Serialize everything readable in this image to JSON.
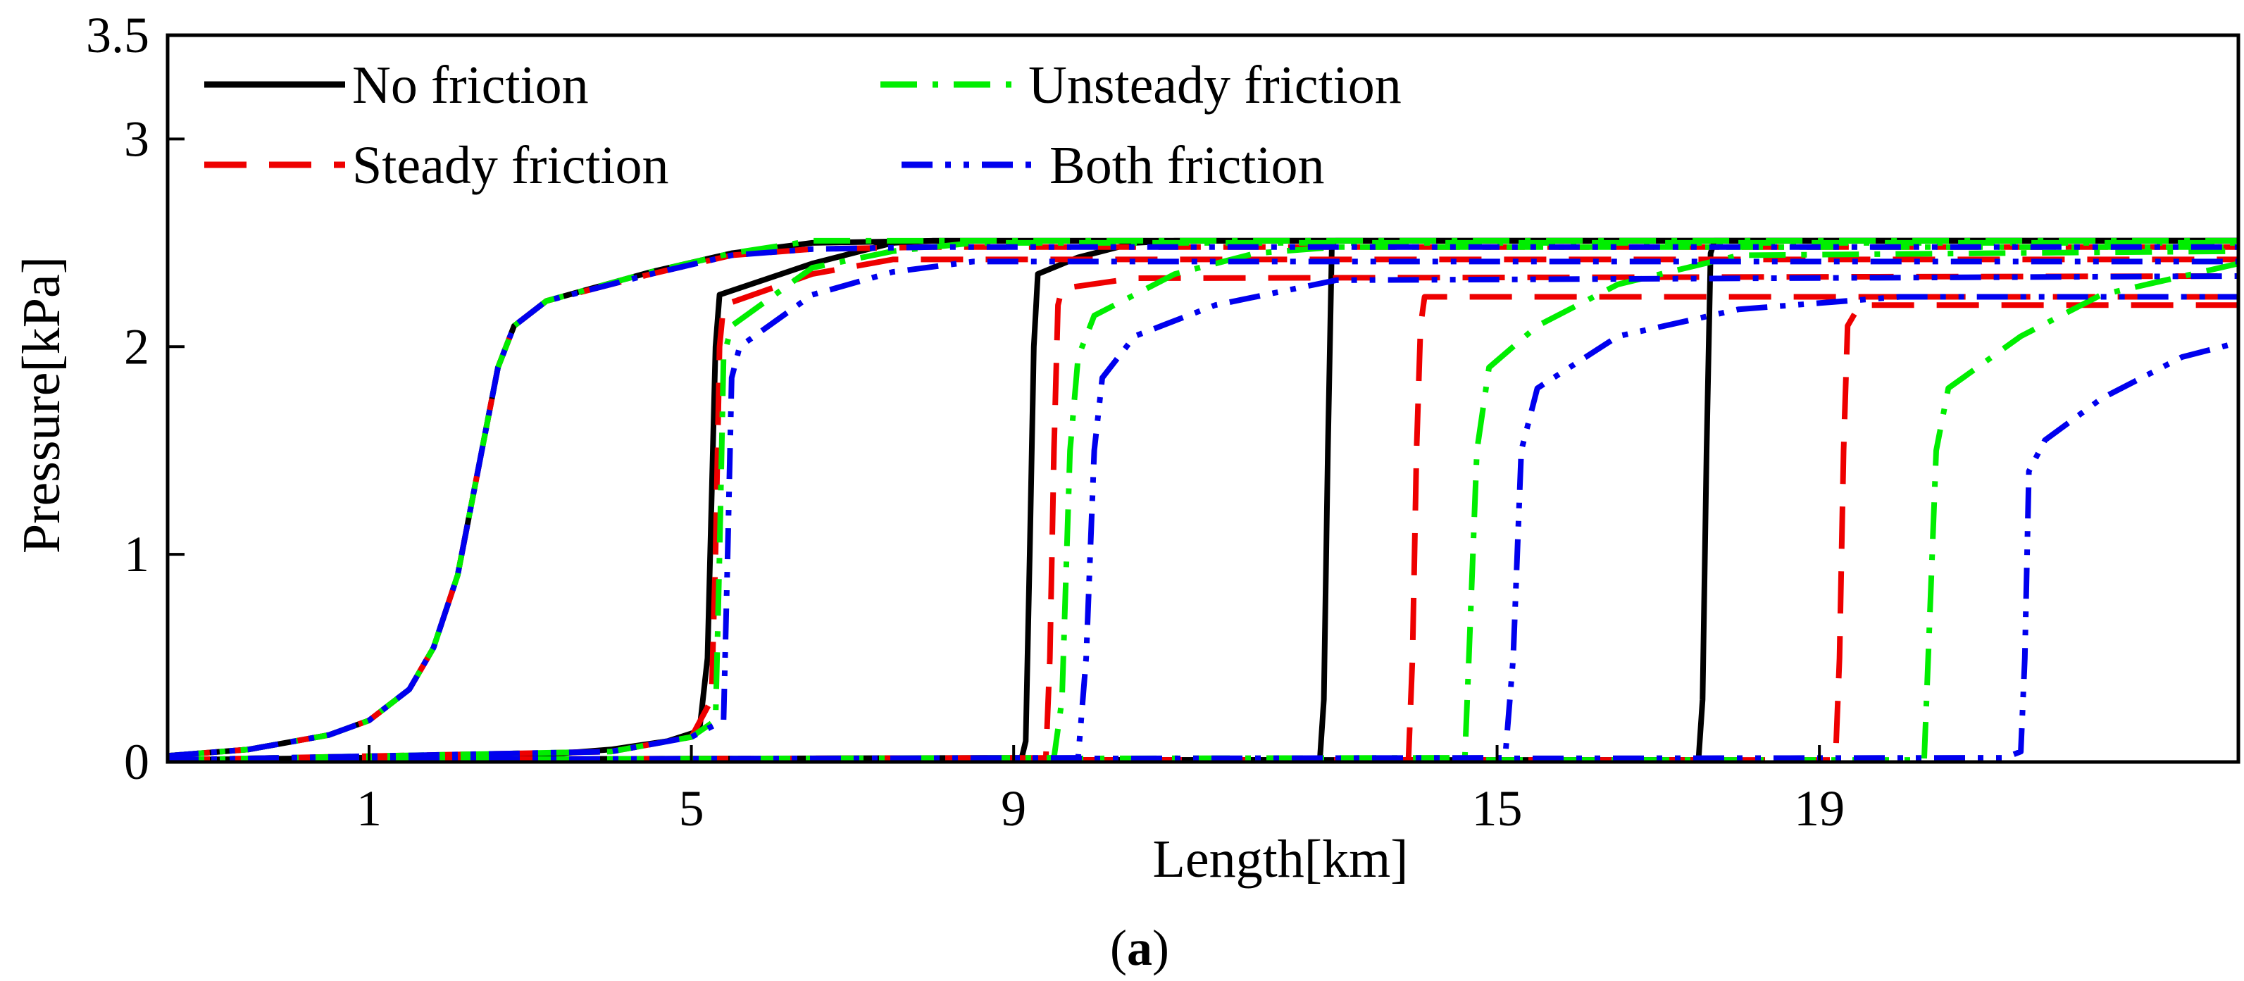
{
  "chart_data": {
    "type": "line",
    "title": "",
    "caption_open": "(",
    "caption_letter": "a",
    "caption_close": ")",
    "xlabel": "Length[km]",
    "ylabel": "Pressure[kPa]",
    "xlim": [
      -1.5,
      24.2
    ],
    "ylim": [
      0,
      3.5
    ],
    "xticks": [
      1,
      5,
      9,
      15,
      19
    ],
    "yticks": [
      0,
      1,
      2,
      3,
      3.5
    ],
    "ytick_labels": [
      "0",
      "1",
      "2",
      "3",
      "3.5"
    ],
    "grid": false,
    "legend_position": "top-left",
    "legend": [
      {
        "name": "No friction",
        "color": "#000000",
        "style": "solid"
      },
      {
        "name": "Unsteady friction",
        "color": "#00ee00",
        "style": "dashdot"
      },
      {
        "name": "Steady friction",
        "color": "#ee0000",
        "style": "dashed"
      },
      {
        "name": "Both friction",
        "color": "#0000ee",
        "style": "dashdotdot"
      }
    ],
    "series": [
      {
        "name": "No friction",
        "color": "#000000",
        "style": "solid",
        "curves": [
          [
            [
              -1.5,
              0.03
            ],
            [
              -0.5,
              0.06
            ],
            [
              0.5,
              0.13
            ],
            [
              1,
              0.2
            ],
            [
              1.5,
              0.35
            ],
            [
              1.8,
              0.55
            ],
            [
              2.1,
              0.9
            ],
            [
              2.4,
              1.5
            ],
            [
              2.6,
              1.9
            ],
            [
              2.8,
              2.1
            ],
            [
              3.2,
              2.22
            ],
            [
              4.5,
              2.36
            ],
            [
              5.5,
              2.45
            ],
            [
              6.5,
              2.5
            ],
            [
              8,
              2.51
            ],
            [
              24.2,
              2.51
            ]
          ],
          [
            [
              -1.5,
              0.01
            ],
            [
              3,
              0.03
            ],
            [
              4,
              0.06
            ],
            [
              4.7,
              0.1
            ],
            [
              5.1,
              0.15
            ],
            [
              5.2,
              0.5
            ],
            [
              5.3,
              2.0
            ],
            [
              5.35,
              2.25
            ],
            [
              6.5,
              2.4
            ],
            [
              7.5,
              2.5
            ],
            [
              8,
              2.51
            ],
            [
              24.2,
              2.51
            ]
          ],
          [
            [
              -1.5,
              0.01
            ],
            [
              9.1,
              0.02
            ],
            [
              9.15,
              0.1
            ],
            [
              9.2,
              1.0
            ],
            [
              9.25,
              2.0
            ],
            [
              9.3,
              2.35
            ],
            [
              9.8,
              2.43
            ],
            [
              10.5,
              2.5
            ],
            [
              11,
              2.51
            ],
            [
              24.2,
              2.51
            ]
          ],
          [
            [
              -1.5,
              0.01
            ],
            [
              12.8,
              0.01
            ],
            [
              12.85,
              0.3
            ],
            [
              12.9,
              1.5
            ],
            [
              12.95,
              2.5
            ],
            [
              13.0,
              2.51
            ],
            [
              24.2,
              2.51
            ]
          ],
          [
            [
              -1.5,
              0.01
            ],
            [
              17.5,
              0.01
            ],
            [
              17.55,
              0.3
            ],
            [
              17.6,
              1.5
            ],
            [
              17.65,
              2.45
            ],
            [
              17.7,
              2.51
            ],
            [
              24.2,
              2.51
            ]
          ]
        ]
      },
      {
        "name": "Steady friction",
        "color": "#ee0000",
        "style": "dashed",
        "curves": [
          [
            [
              -1.5,
              0.03
            ],
            [
              -0.5,
              0.06
            ],
            [
              0.5,
              0.13
            ],
            [
              1,
              0.2
            ],
            [
              1.5,
              0.35
            ],
            [
              1.8,
              0.55
            ],
            [
              2.1,
              0.9
            ],
            [
              2.4,
              1.5
            ],
            [
              2.6,
              1.9
            ],
            [
              2.8,
              2.1
            ],
            [
              3.2,
              2.22
            ],
            [
              4.5,
              2.35
            ],
            [
              5.5,
              2.44
            ],
            [
              6.5,
              2.47
            ],
            [
              8,
              2.48
            ],
            [
              24.2,
              2.48
            ]
          ],
          [
            [
              -1.5,
              0.01
            ],
            [
              4,
              0.05
            ],
            [
              5,
              0.12
            ],
            [
              5.25,
              0.3
            ],
            [
              5.3,
              1.0
            ],
            [
              5.35,
              2.0
            ],
            [
              5.4,
              2.2
            ],
            [
              6.5,
              2.35
            ],
            [
              7.5,
              2.42
            ],
            [
              24.2,
              2.42
            ]
          ],
          [
            [
              -1.5,
              0.01
            ],
            [
              9.4,
              0.02
            ],
            [
              9.45,
              0.5
            ],
            [
              9.5,
              1.5
            ],
            [
              9.55,
              2.2
            ],
            [
              9.6,
              2.28
            ],
            [
              10.5,
              2.33
            ],
            [
              24.2,
              2.34
            ]
          ],
          [
            [
              -1.5,
              0.01
            ],
            [
              13.9,
              0.01
            ],
            [
              13.95,
              0.5
            ],
            [
              14.0,
              1.5
            ],
            [
              14.05,
              2.1
            ],
            [
              14.1,
              2.24
            ],
            [
              24.2,
              2.24
            ]
          ],
          [
            [
              -1.5,
              0.01
            ],
            [
              19.2,
              0.01
            ],
            [
              19.25,
              0.5
            ],
            [
              19.3,
              1.5
            ],
            [
              19.35,
              2.1
            ],
            [
              19.5,
              2.2
            ],
            [
              24.2,
              2.2
            ]
          ]
        ]
      },
      {
        "name": "Unsteady friction",
        "color": "#00ee00",
        "style": "dashdot",
        "curves": [
          [
            [
              -1.5,
              0.03
            ],
            [
              -0.5,
              0.06
            ],
            [
              0.5,
              0.13
            ],
            [
              1,
              0.2
            ],
            [
              1.5,
              0.35
            ],
            [
              1.8,
              0.55
            ],
            [
              2.1,
              0.9
            ],
            [
              2.4,
              1.5
            ],
            [
              2.6,
              1.9
            ],
            [
              2.8,
              2.1
            ],
            [
              3.2,
              2.22
            ],
            [
              4.5,
              2.36
            ],
            [
              5.5,
              2.45
            ],
            [
              6.5,
              2.51
            ],
            [
              24.2,
              2.51
            ]
          ],
          [
            [
              -1.5,
              0.01
            ],
            [
              4,
              0.05
            ],
            [
              5,
              0.12
            ],
            [
              5.3,
              0.2
            ],
            [
              5.35,
              1.0
            ],
            [
              5.4,
              1.95
            ],
            [
              5.5,
              2.1
            ],
            [
              6.5,
              2.38
            ],
            [
              7.5,
              2.46
            ],
            [
              8.5,
              2.5
            ],
            [
              24.2,
              2.5
            ]
          ],
          [
            [
              -1.5,
              0.01
            ],
            [
              9.5,
              0.02
            ],
            [
              9.6,
              0.3
            ],
            [
              9.7,
              1.5
            ],
            [
              9.8,
              1.95
            ],
            [
              10,
              2.15
            ],
            [
              11,
              2.35
            ],
            [
              12,
              2.45
            ],
            [
              13,
              2.48
            ],
            [
              24.2,
              2.48
            ]
          ],
          [
            [
              -1.5,
              0.01
            ],
            [
              14.6,
              0.02
            ],
            [
              14.65,
              0.5
            ],
            [
              14.75,
              1.5
            ],
            [
              14.9,
              1.9
            ],
            [
              15.5,
              2.1
            ],
            [
              16.5,
              2.3
            ],
            [
              18,
              2.44
            ],
            [
              24.2,
              2.46
            ]
          ],
          [
            [
              -1.5,
              0.01
            ],
            [
              20.3,
              0.01
            ],
            [
              20.35,
              0.5
            ],
            [
              20.45,
              1.5
            ],
            [
              20.6,
              1.8
            ],
            [
              21.5,
              2.05
            ],
            [
              22.5,
              2.25
            ],
            [
              24.2,
              2.4
            ]
          ]
        ]
      },
      {
        "name": "Both friction",
        "color": "#0000ee",
        "style": "dashdotdot",
        "curves": [
          [
            [
              -1.5,
              0.03
            ],
            [
              -0.5,
              0.06
            ],
            [
              0.5,
              0.13
            ],
            [
              1,
              0.2
            ],
            [
              1.5,
              0.35
            ],
            [
              1.8,
              0.55
            ],
            [
              2.1,
              0.9
            ],
            [
              2.4,
              1.5
            ],
            [
              2.6,
              1.9
            ],
            [
              2.8,
              2.1
            ],
            [
              3.2,
              2.22
            ],
            [
              4.5,
              2.35
            ],
            [
              5.5,
              2.44
            ],
            [
              6.5,
              2.47
            ],
            [
              8,
              2.48
            ],
            [
              24.2,
              2.48
            ]
          ],
          [
            [
              -1.5,
              0.01
            ],
            [
              4,
              0.05
            ],
            [
              5,
              0.12
            ],
            [
              5.4,
              0.2
            ],
            [
              5.45,
              1.0
            ],
            [
              5.5,
              1.85
            ],
            [
              5.6,
              2.0
            ],
            [
              6.5,
              2.25
            ],
            [
              7.5,
              2.36
            ],
            [
              8.5,
              2.41
            ],
            [
              24.2,
              2.41
            ]
          ],
          [
            [
              -1.5,
              0.01
            ],
            [
              9.8,
              0.02
            ],
            [
              9.9,
              0.5
            ],
            [
              10.0,
              1.5
            ],
            [
              10.1,
              1.85
            ],
            [
              10.5,
              2.05
            ],
            [
              11.5,
              2.2
            ],
            [
              13,
              2.32
            ],
            [
              24.2,
              2.34
            ]
          ],
          [
            [
              -1.5,
              0.01
            ],
            [
              15.1,
              0.02
            ],
            [
              15.2,
              0.5
            ],
            [
              15.3,
              1.5
            ],
            [
              15.5,
              1.8
            ],
            [
              16.5,
              2.05
            ],
            [
              18,
              2.18
            ],
            [
              20,
              2.24
            ],
            [
              24.2,
              2.24
            ]
          ],
          [
            [
              -1.5,
              0.01
            ],
            [
              21.3,
              0.02
            ],
            [
              21.5,
              0.05
            ],
            [
              21.55,
              0.5
            ],
            [
              21.6,
              1.4
            ],
            [
              21.8,
              1.55
            ],
            [
              22.5,
              1.75
            ],
            [
              23.5,
              1.95
            ],
            [
              24.2,
              2.02
            ]
          ]
        ]
      }
    ]
  }
}
